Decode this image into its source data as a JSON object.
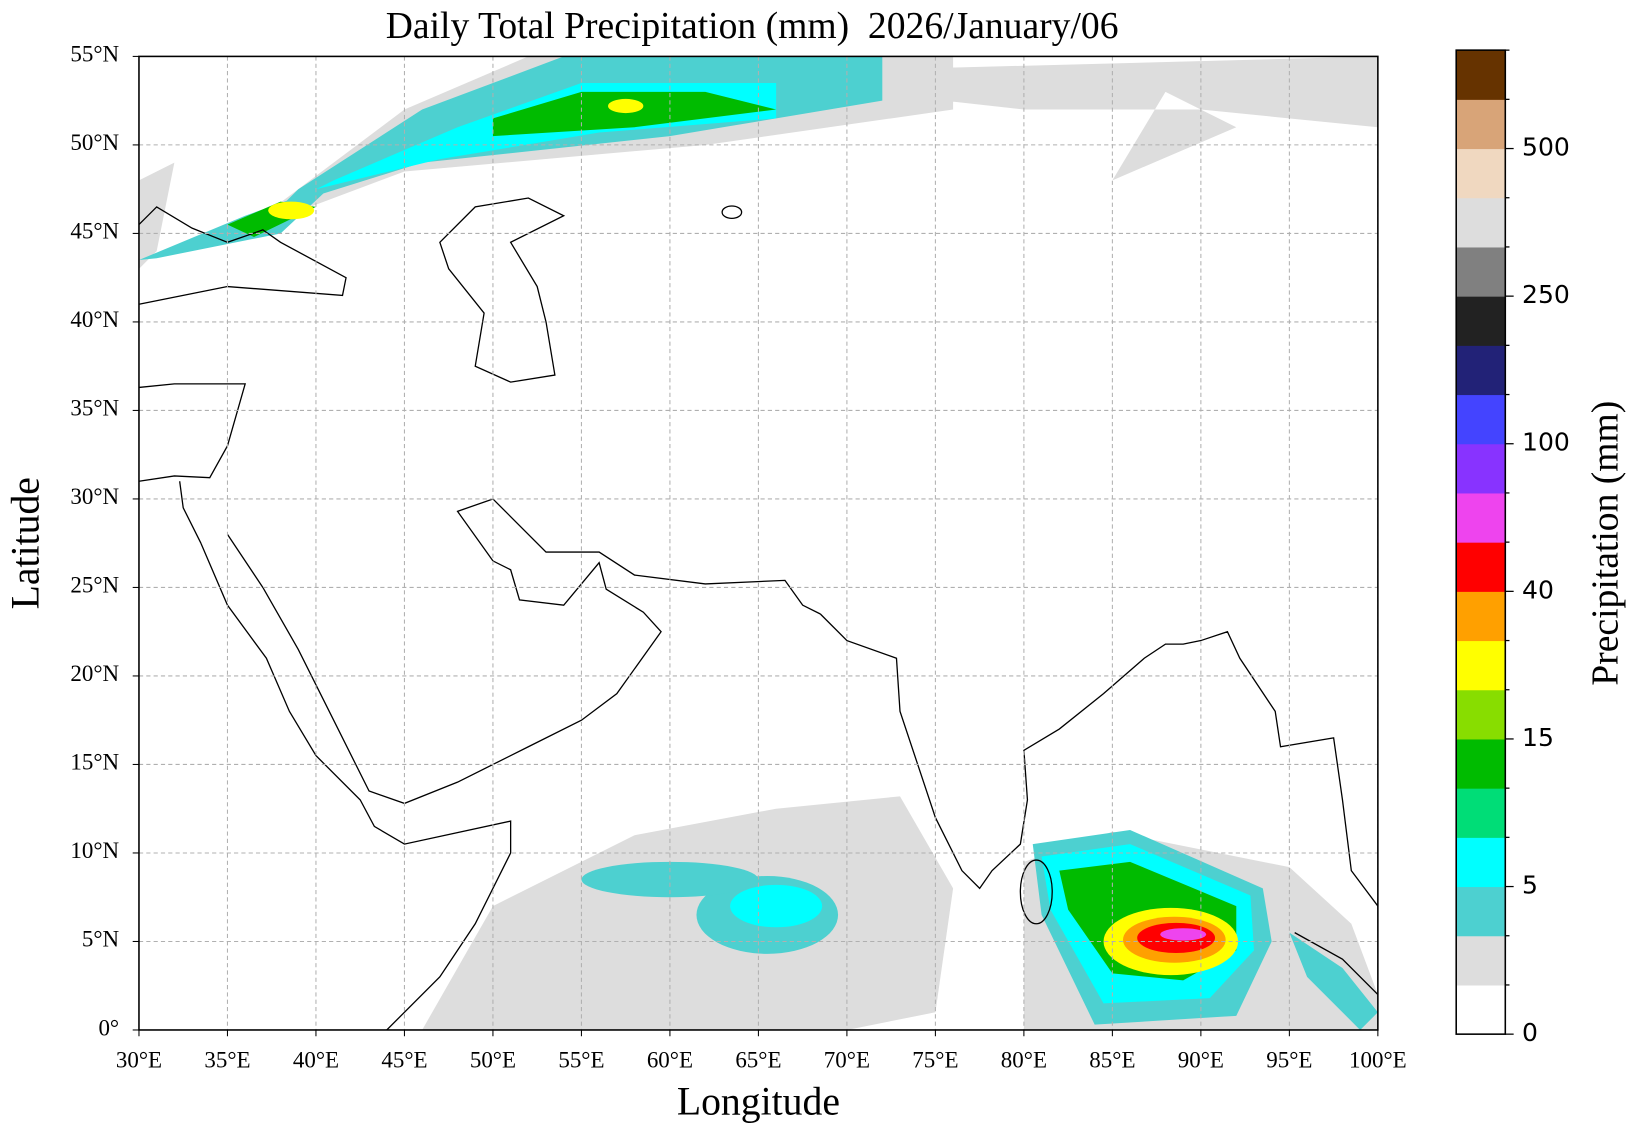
{
  "chart_data": {
    "type": "map",
    "title": "Daily Total Precipitation (mm)  2026/January/06",
    "x_label": "Longitude",
    "y_label": "Latitude",
    "xlim": [
      30,
      100
    ],
    "ylim": [
      0,
      55
    ],
    "grid": true,
    "xticks": [
      {
        "value": 30,
        "label": "30°E"
      },
      {
        "value": 35,
        "label": "35°E"
      },
      {
        "value": 40,
        "label": "40°E"
      },
      {
        "value": 45,
        "label": "45°E"
      },
      {
        "value": 50,
        "label": "50°E"
      },
      {
        "value": 55,
        "label": "55°E"
      },
      {
        "value": 60,
        "label": "60°E"
      },
      {
        "value": 65,
        "label": "65°E"
      },
      {
        "value": 70,
        "label": "70°E"
      },
      {
        "value": 75,
        "label": "75°E"
      },
      {
        "value": 80,
        "label": "80°E"
      },
      {
        "value": 85,
        "label": "85°E"
      },
      {
        "value": 90,
        "label": "90°E"
      },
      {
        "value": 95,
        "label": "95°E"
      },
      {
        "value": 100,
        "label": "100°E"
      }
    ],
    "yticks": [
      {
        "value": 0,
        "label": "0°"
      },
      {
        "value": 5,
        "label": "5°N"
      },
      {
        "value": 10,
        "label": "10°N"
      },
      {
        "value": 15,
        "label": "15°N"
      },
      {
        "value": 20,
        "label": "20°N"
      },
      {
        "value": 25,
        "label": "25°N"
      },
      {
        "value": 30,
        "label": "30°N"
      },
      {
        "value": 35,
        "label": "35°N"
      },
      {
        "value": 40,
        "label": "40°N"
      },
      {
        "value": 45,
        "label": "45°N"
      },
      {
        "value": 50,
        "label": "50°N"
      },
      {
        "value": 55,
        "label": "55°N"
      }
    ],
    "colorbar": {
      "label": "Precipitation (mm)",
      "levels": [
        0,
        null,
        null,
        5,
        null,
        null,
        15,
        null,
        null,
        40,
        null,
        null,
        100,
        null,
        null,
        250,
        null,
        null,
        500,
        null,
        null
      ],
      "colors": [
        "#ffffff",
        "#dddddd",
        "#4dd0d0",
        "#00ffff",
        "#00dd77",
        "#00bb00",
        "#88dd00",
        "#ffff00",
        "#ffa000",
        "#ff0000",
        "#ee44ee",
        "#8833ff",
        "#4444ff",
        "#222277",
        "#222222",
        "#808080",
        "#dddddd",
        "#f0d8c0",
        "#d8a478",
        "#663300"
      ]
    }
  }
}
